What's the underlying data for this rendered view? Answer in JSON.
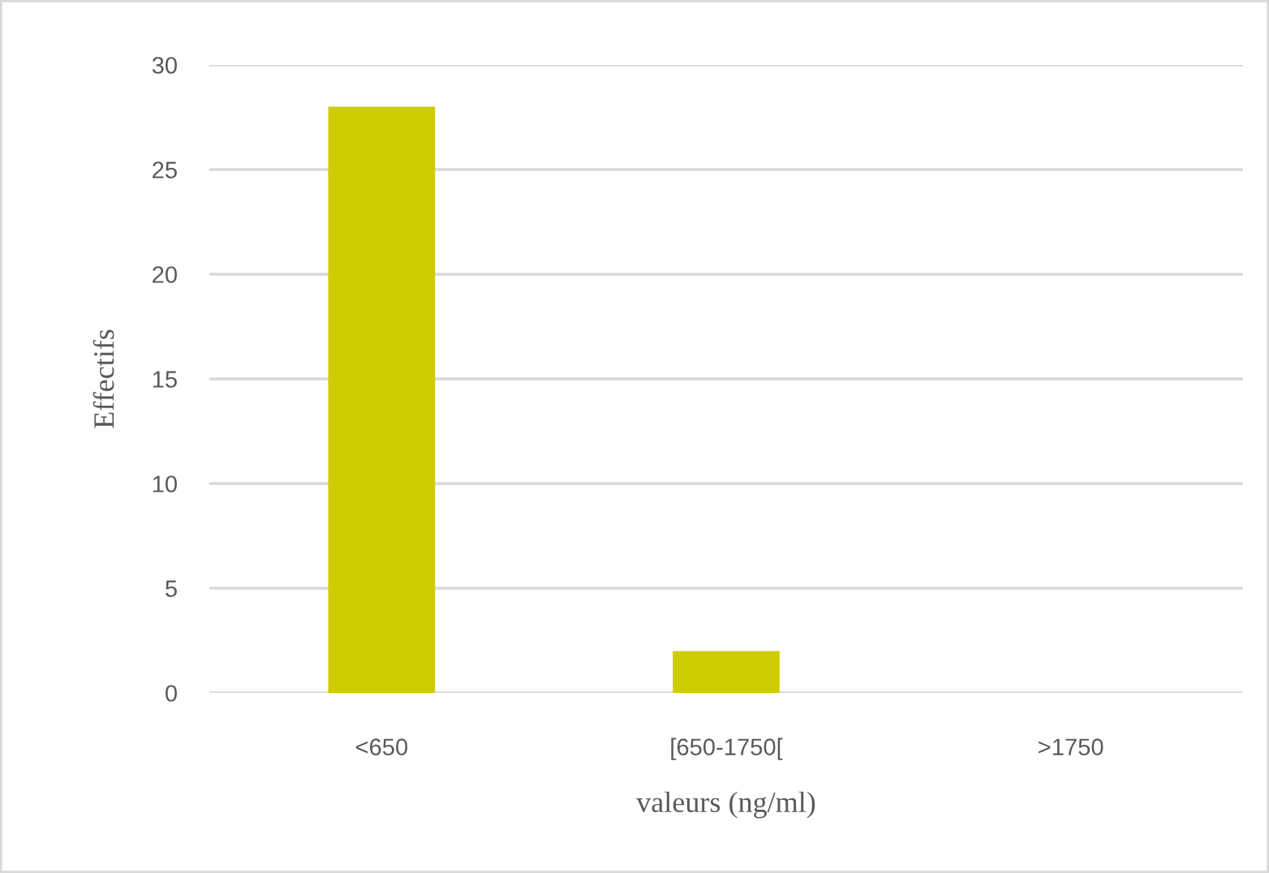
{
  "chart_data": {
    "type": "bar",
    "xlabel": "valeurs (ng/ml)",
    "ylabel": "Effectifs",
    "categories": [
      "<650",
      "[650-1750[",
      ">1750"
    ],
    "values": [
      28,
      2,
      0
    ],
    "color": "#cccc00",
    "ylim": [
      0,
      30
    ],
    "yticks": [
      0,
      5,
      10,
      15,
      20,
      25,
      30
    ],
    "grid": "y"
  }
}
